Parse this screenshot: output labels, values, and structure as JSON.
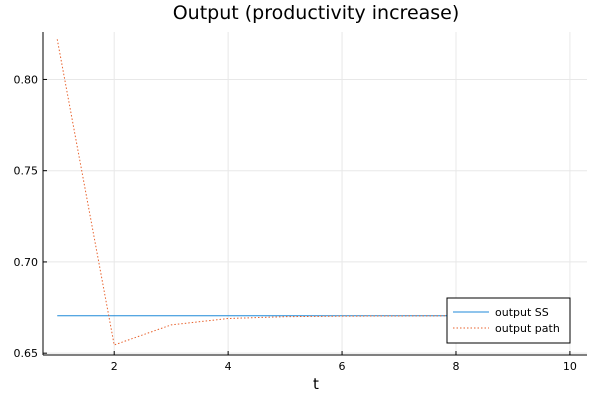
{
  "chart_data": {
    "type": "line",
    "title": "Output (productivity increase)",
    "xlabel": "t",
    "ylabel": "",
    "xlim": [
      0.75,
      10.3
    ],
    "ylim": [
      0.649,
      0.826
    ],
    "xticks": [
      2,
      4,
      6,
      8,
      10
    ],
    "yticks": [
      0.65,
      0.7,
      0.75,
      0.8
    ],
    "xtick_labels": [
      "2",
      "4",
      "6",
      "8",
      "10"
    ],
    "ytick_labels": [
      "0.65",
      "0.70",
      "0.75",
      "0.80"
    ],
    "grid": true,
    "legend_position": "bottom-right",
    "series": [
      {
        "name": "output SS",
        "style": "solid",
        "color": "#1f8ad8",
        "x": [
          1,
          2,
          3,
          4,
          5,
          6,
          7,
          8,
          9,
          10
        ],
        "y": [
          0.6705,
          0.6705,
          0.6705,
          0.6705,
          0.6705,
          0.6705,
          0.6705,
          0.6705,
          0.6705,
          0.6705
        ]
      },
      {
        "name": "output path",
        "style": "dotted",
        "color": "#e8622d",
        "x": [
          1,
          2,
          3,
          4,
          5,
          6,
          7,
          8,
          9,
          10
        ],
        "y": [
          0.822,
          0.6545,
          0.6655,
          0.669,
          0.67,
          0.6703,
          0.6704,
          0.6705,
          0.6705,
          0.6705
        ]
      }
    ]
  }
}
